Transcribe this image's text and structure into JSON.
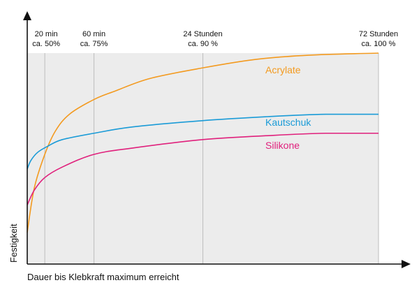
{
  "chart_data": {
    "type": "line",
    "title": "",
    "xlabel": "Dauer bis Klebkraft maximum erreicht",
    "ylabel": "Festigkeit",
    "xlim": [
      0,
      100
    ],
    "ylim": [
      0,
      100
    ],
    "grid": "vertical",
    "milestones": [
      {
        "x": 5,
        "time": "20 min",
        "percent": "ca. 50%"
      },
      {
        "x": 19,
        "time": "60 min",
        "percent": "ca. 75%"
      },
      {
        "x": 50,
        "time": "24 Stunden",
        "percent": "ca. 90 %"
      },
      {
        "x": 100,
        "time": "72 Stunden",
        "percent": "ca. 100 %"
      }
    ],
    "series": [
      {
        "name": "Acrylate",
        "color": "#f39a1f",
        "x": [
          0,
          2,
          5,
          8,
          12,
          19,
          25,
          35,
          50,
          65,
          80,
          100
        ],
        "y": [
          15,
          36,
          52,
          63,
          71,
          78,
          82,
          88,
          93,
          97,
          99,
          100
        ]
      },
      {
        "name": "Kautschuk",
        "color": "#1a9bd7",
        "x": [
          0,
          1,
          3,
          6,
          10,
          19,
          30,
          50,
          70,
          85,
          100
        ],
        "y": [
          45,
          49,
          53,
          56,
          59,
          62,
          65,
          68,
          70,
          71,
          71
        ]
      },
      {
        "name": "Silikone",
        "color": "#e0207c",
        "x": [
          0,
          2,
          5,
          10,
          19,
          30,
          50,
          70,
          85,
          100
        ],
        "y": [
          28,
          35,
          41,
          46,
          52,
          55,
          59,
          61,
          62,
          62
        ]
      }
    ]
  }
}
